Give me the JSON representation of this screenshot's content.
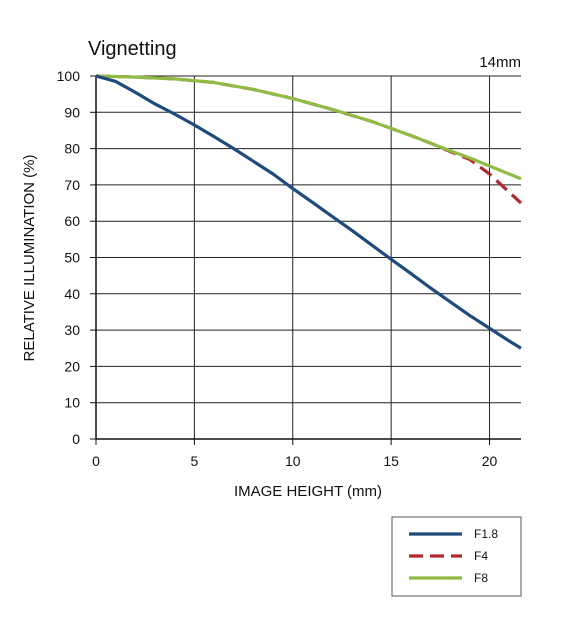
{
  "chart_data": {
    "type": "line",
    "title": "Vignetting",
    "subtitle": "14mm",
    "xlabel": "IMAGE HEIGHT (mm)",
    "ylabel": "RELATIVE ILLUMINATION (%)",
    "xlim": [
      0,
      21.6
    ],
    "ylim": [
      0,
      100
    ],
    "xticks": [
      0,
      5,
      10,
      15,
      20
    ],
    "yticks": [
      0,
      10,
      20,
      30,
      40,
      50,
      60,
      70,
      80,
      90,
      100
    ],
    "grid": true,
    "legend_position": "bottom-right",
    "series": [
      {
        "name": "F1.8",
        "color": "#1f4a7c",
        "dash": "solid",
        "x": [
          0,
          1,
          2,
          3,
          4,
          5,
          6,
          7,
          8,
          9,
          10,
          11,
          12,
          13,
          14,
          15,
          16,
          17,
          18,
          19,
          20,
          21,
          21.6
        ],
        "y": [
          100,
          98.5,
          95.5,
          92.3,
          89.5,
          86.5,
          83.3,
          80,
          76.5,
          73,
          69,
          65.2,
          61.3,
          57.5,
          53.5,
          49.5,
          45.6,
          41.6,
          37.8,
          34,
          30.5,
          27,
          25
        ]
      },
      {
        "name": "F4",
        "color": "#b3282d",
        "dash": "dashed",
        "x": [
          0,
          2,
          4,
          6,
          8,
          10,
          12,
          14,
          16,
          17,
          18,
          19,
          20,
          21,
          21.6
        ],
        "y": [
          100,
          99.7,
          99.2,
          98.2,
          96.3,
          93.8,
          90.8,
          87.5,
          83.6,
          81.5,
          79.2,
          77,
          73,
          68,
          65
        ]
      },
      {
        "name": "F8",
        "color": "#8fbc45",
        "dash": "solid",
        "x": [
          0,
          2,
          4,
          6,
          8,
          10,
          12,
          14,
          16,
          18,
          19,
          20,
          21,
          21.6
        ],
        "y": [
          100,
          99.7,
          99.2,
          98.2,
          96.3,
          93.8,
          90.8,
          87.5,
          83.6,
          79.4,
          77.4,
          75.2,
          73,
          71.7
        ]
      }
    ]
  }
}
